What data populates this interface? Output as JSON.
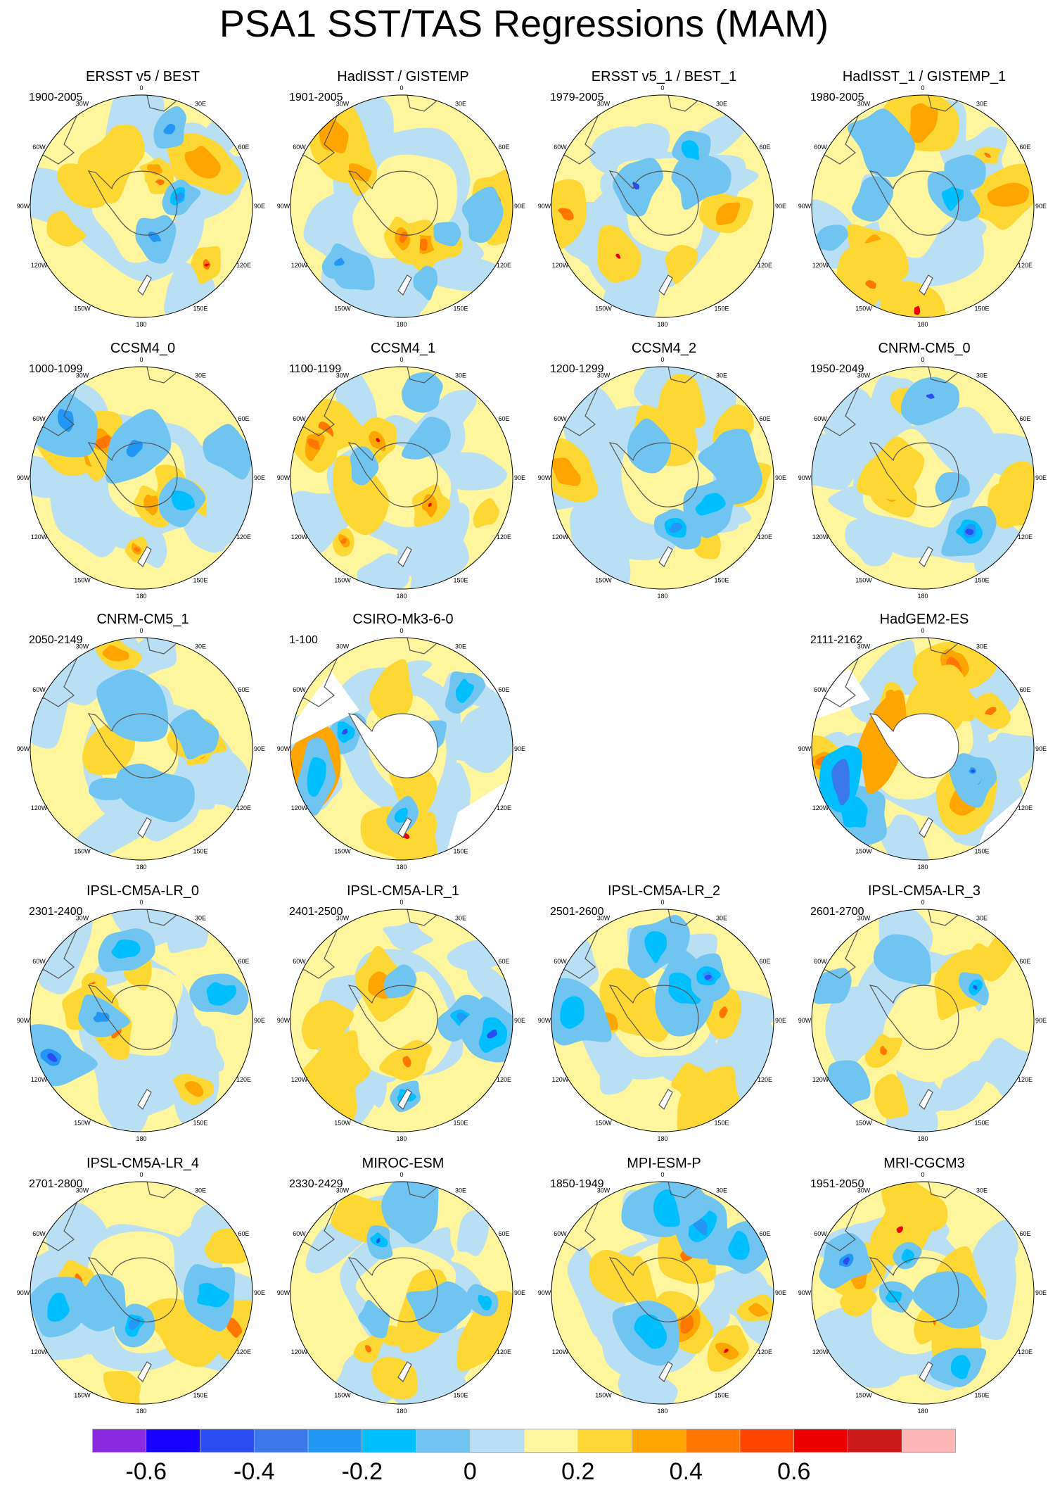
{
  "title": "PSA1 SST/TAS Regressions (MAM)",
  "panels": [
    {
      "title": "ERSST v5 / BEST",
      "years": "1900-2005",
      "row": 0,
      "col": 0,
      "style": "obs",
      "warm": 0.2,
      "cool": 0.35,
      "seed": 3
    },
    {
      "title": "HadISST / GISTEMP",
      "years": "1901-2005",
      "row": 0,
      "col": 1,
      "style": "obs",
      "warm": 0.45,
      "cool": 0.2,
      "seed": 7
    },
    {
      "title": "ERSST v5_1 / BEST_1",
      "years": "1979-2005",
      "row": 0,
      "col": 2,
      "style": "obs",
      "warm": 0.3,
      "cool": 0.3,
      "seed": 11
    },
    {
      "title": "HadISST_1 / GISTEMP_1",
      "years": "1980-2005",
      "row": 0,
      "col": 3,
      "style": "obs",
      "warm": 0.4,
      "cool": 0.3,
      "seed": 13
    },
    {
      "title": "CCSM4_0",
      "years": "1000-1099",
      "row": 1,
      "col": 0,
      "style": "model",
      "warm": 0.45,
      "cool": 0.35,
      "seed": 17
    },
    {
      "title": "CCSM4_1",
      "years": "1100-1199",
      "row": 1,
      "col": 1,
      "style": "model",
      "warm": 0.6,
      "cool": 0.35,
      "seed": 19
    },
    {
      "title": "CCSM4_2",
      "years": "1200-1299",
      "row": 1,
      "col": 2,
      "style": "model",
      "warm": 0.3,
      "cool": 0.35,
      "seed": 23
    },
    {
      "title": "CNRM-CM5_0",
      "years": "1950-2049",
      "row": 1,
      "col": 3,
      "style": "model",
      "warm": 0.2,
      "cool": 0.3,
      "seed": 29
    },
    {
      "title": "CNRM-CM5_1",
      "years": "2050-2149",
      "row": 2,
      "col": 0,
      "style": "model",
      "warm": 0.25,
      "cool": 0.3,
      "seed": 31
    },
    {
      "title": "CSIRO-Mk3-6-0",
      "years": "1-100",
      "row": 2,
      "col": 1,
      "style": "csiro",
      "warm": 0.45,
      "cool": 0.5,
      "seed": 37
    },
    {
      "title": "HadGEM2-ES",
      "years": "2111-2162",
      "row": 2,
      "col": 3,
      "style": "hadgem",
      "warm": 0.55,
      "cool": 0.55,
      "seed": 41
    },
    {
      "title": "IPSL-CM5A-LR_0",
      "years": "2301-2400",
      "row": 3,
      "col": 0,
      "style": "model",
      "warm": 0.25,
      "cool": 0.45,
      "seed": 43
    },
    {
      "title": "IPSL-CM5A-LR_1",
      "years": "2401-2500",
      "row": 3,
      "col": 1,
      "style": "model",
      "warm": 0.25,
      "cool": 0.45,
      "seed": 47
    },
    {
      "title": "IPSL-CM5A-LR_2",
      "years": "2501-2600",
      "row": 3,
      "col": 2,
      "style": "model",
      "warm": 0.3,
      "cool": 0.45,
      "seed": 53
    },
    {
      "title": "IPSL-CM5A-LR_3",
      "years": "2601-2700",
      "row": 3,
      "col": 3,
      "style": "model",
      "warm": 0.25,
      "cool": 0.3,
      "seed": 59
    },
    {
      "title": "IPSL-CM5A-LR_4",
      "years": "2701-2800",
      "row": 4,
      "col": 0,
      "style": "model",
      "warm": 0.25,
      "cool": 0.45,
      "seed": 61
    },
    {
      "title": "MIROC-ESM",
      "years": "2330-2429",
      "row": 4,
      "col": 1,
      "style": "model",
      "warm": 0.3,
      "cool": 0.2,
      "seed": 67
    },
    {
      "title": "MPI-ESM-P",
      "years": "1850-1949",
      "row": 4,
      "col": 2,
      "style": "obs",
      "warm": 0.45,
      "cool": 0.45,
      "seed": 71
    },
    {
      "title": "MRI-CGCM3",
      "years": "1951-2050",
      "row": 4,
      "col": 3,
      "style": "model",
      "warm": 0.3,
      "cool": 0.65,
      "seed": 73
    }
  ],
  "lon_labels": [
    "0",
    "30E",
    "60E",
    "90E",
    "120E",
    "150E",
    "180",
    "150W",
    "120W",
    "90W",
    "60W",
    "30W"
  ],
  "colorbar": {
    "colors": [
      "#8a2be2",
      "#1a00ff",
      "#2a4cf0",
      "#3a78ee",
      "#2496f6",
      "#00bfff",
      "#70c4f0",
      "#b8dff3",
      "#fff59d",
      "#fdd835",
      "#ffa500",
      "#ff7600",
      "#ff4500",
      "#ee0000",
      "#cc1a1a",
      "#ffb6b6"
    ],
    "tick_labels": [
      "-0.6",
      "-0.4",
      "-0.2",
      "0",
      "0.2",
      "0.4",
      "0.6"
    ],
    "tick_values": [
      -0.6,
      -0.4,
      -0.2,
      0,
      0.2,
      0.4,
      0.6
    ],
    "levels_min": -0.7,
    "level_step": 0.1
  }
}
